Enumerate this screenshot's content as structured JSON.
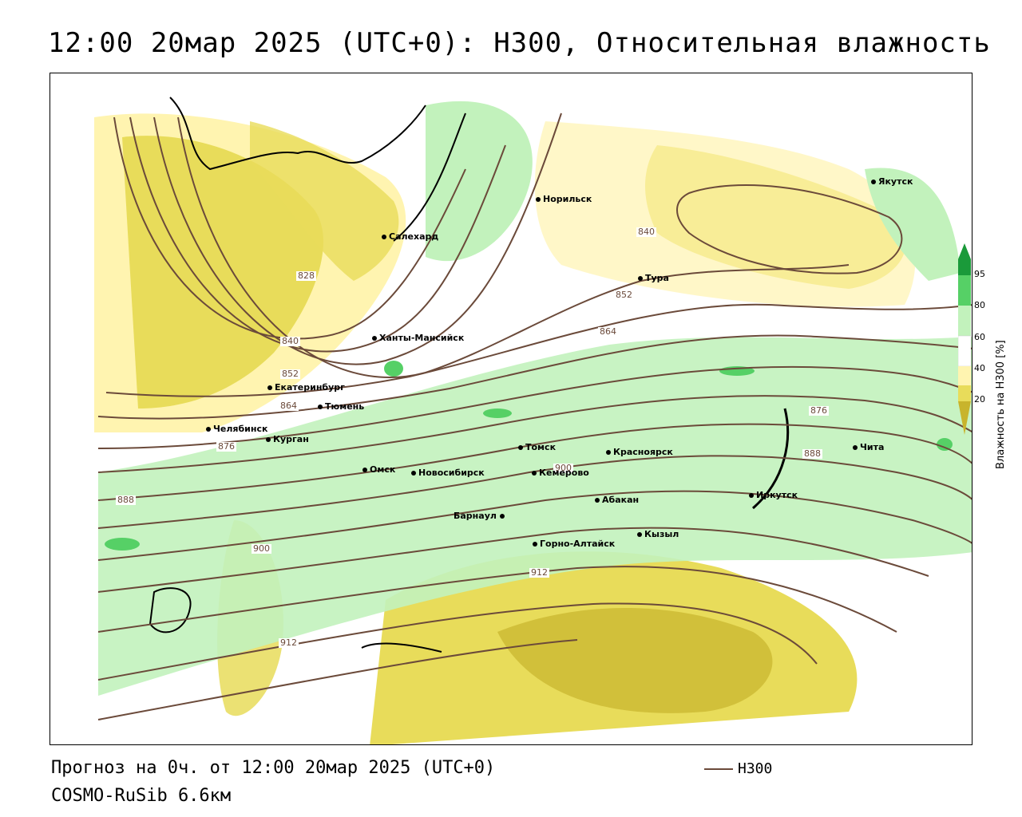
{
  "title": "12:00 20мар 2025 (UTC+0): H300, Относительная влажность",
  "footer": {
    "forecast": "Прогноз на 0ч. от 12:00 20мар 2025 (UTC+0)",
    "model": "COSMO-RuSib 6.6км",
    "line_legend": "H300"
  },
  "legend": {
    "title": "Влажность на H300 [%]",
    "ticks": [
      "95",
      "80",
      "60",
      "40",
      "20"
    ],
    "colors": {
      "c95": "#1a9a3a",
      "c80": "#56d066",
      "c60": "#c2f2bc",
      "c40": "#ffffff",
      "c30": "#fff4b0",
      "c20": "#e8dc5a",
      "c10": "#c8b42c"
    }
  },
  "contour_color": "#6b4a3a",
  "contour_labels": [
    "828",
    "840",
    "852",
    "864",
    "876",
    "888",
    "900",
    "912",
    "840",
    "852",
    "864",
    "876",
    "888",
    "900",
    "912"
  ],
  "cities": [
    "Якутск",
    "Норильск",
    "Салехард",
    "Тура",
    "Ханты-Мансийск",
    "Екатеринбург",
    "Тюмень",
    "Челябинск",
    "Курган",
    "Омск",
    "Новосибирск",
    "Томск",
    "Кемерово",
    "Красноярск",
    "Чита",
    "Иркутск",
    "Абакан",
    "Барнаул",
    "Горно-Алтайск",
    "Кызыл"
  ]
}
